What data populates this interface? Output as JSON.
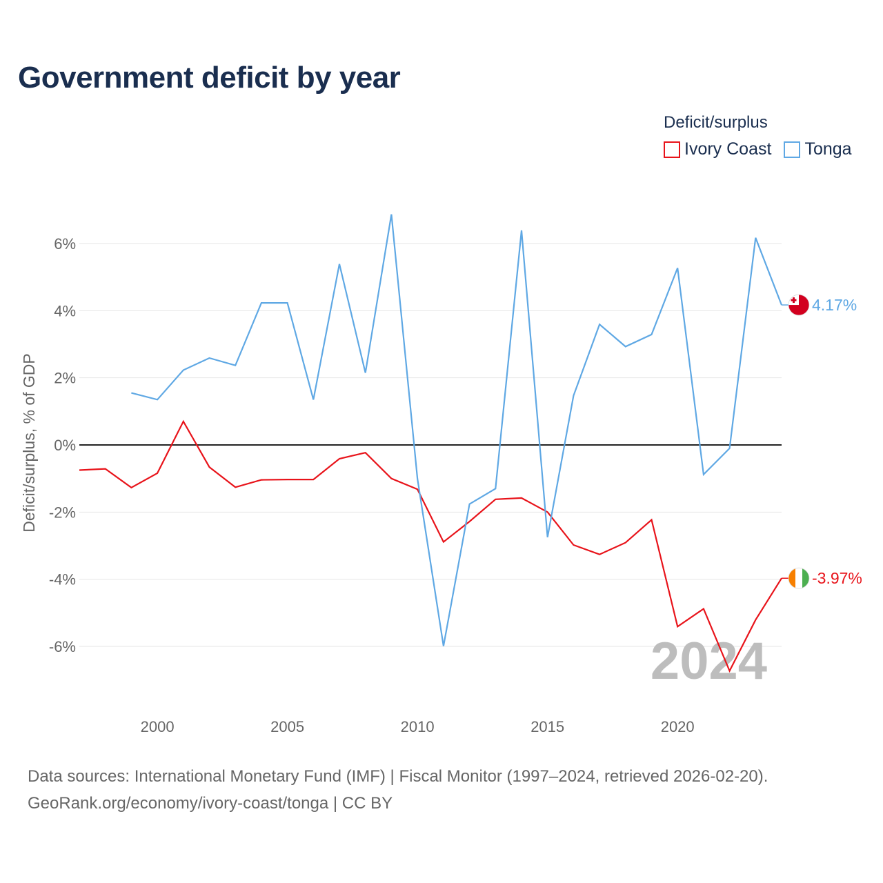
{
  "title": "Government deficit by year",
  "legend": {
    "title": "Deficit/surplus",
    "items": [
      {
        "label": "Ivory Coast",
        "color": "#e8131a"
      },
      {
        "label": "Tonga",
        "color": "#5fa8e4"
      }
    ]
  },
  "chart_data": {
    "type": "line",
    "title": "Government deficit by year",
    "xlabel": "",
    "ylabel": "Deficit/surplus, % of GDP",
    "xlim": [
      1997,
      2024
    ],
    "ylim": [
      -7.5,
      7.5
    ],
    "x_ticks": [
      2000,
      2005,
      2010,
      2015,
      2020
    ],
    "y_ticks": [
      -6,
      -4,
      -2,
      0,
      2,
      4,
      6
    ],
    "y_tick_labels": [
      "-6%",
      "-4%",
      "-2%",
      "0%",
      "2%",
      "4%",
      "6%"
    ],
    "series": [
      {
        "name": "Ivory Coast",
        "color": "#e8131a",
        "x": [
          1997,
          1998,
          1999,
          2000,
          2001,
          2002,
          2003,
          2004,
          2005,
          2006,
          2007,
          2008,
          2009,
          2010,
          2011,
          2012,
          2013,
          2014,
          2015,
          2016,
          2017,
          2018,
          2019,
          2020,
          2021,
          2022,
          2023,
          2024
        ],
        "values": [
          -0.75,
          -0.71,
          -1.27,
          -0.84,
          0.7,
          -0.66,
          -1.26,
          -1.04,
          -1.03,
          -1.03,
          -0.41,
          -0.23,
          -1.0,
          -1.32,
          -2.89,
          -2.28,
          -1.62,
          -1.58,
          -2.0,
          -2.98,
          -3.26,
          -2.91,
          -2.23,
          -5.41,
          -4.88,
          -6.73,
          -5.21,
          -3.97
        ],
        "end_label": "-3.97%"
      },
      {
        "name": "Tonga",
        "color": "#5fa8e4",
        "x": [
          1999,
          2000,
          2001,
          2002,
          2003,
          2004,
          2005,
          2006,
          2007,
          2008,
          2009,
          2010,
          2011,
          2012,
          2013,
          2014,
          2015,
          2016,
          2017,
          2018,
          2019,
          2020,
          2021,
          2022,
          2023,
          2024
        ],
        "values": [
          1.55,
          1.35,
          2.23,
          2.59,
          2.37,
          4.23,
          4.23,
          1.35,
          5.39,
          2.15,
          6.87,
          -1.0,
          -5.99,
          -1.76,
          -1.3,
          6.39,
          -2.75,
          1.47,
          3.59,
          2.93,
          3.29,
          5.27,
          -0.88,
          -0.1,
          6.17,
          4.17
        ],
        "end_label": "4.17%"
      }
    ],
    "annotation": "2024"
  },
  "footer": {
    "line1": "Data sources: International Monetary Fund (IMF) | Fiscal Monitor (1997–2024, retrieved 2026-02-20).",
    "line2": "GeoRank.org/economy/ivory-coast/tonga | CC BY"
  },
  "colors": {
    "title": "#1a2e4f",
    "grid": "#e6e6e6",
    "zero_line": "#222222",
    "tonga_flag_red": "#d2001f",
    "ivory_orange": "#f77f00",
    "ivory_green": "#4caf50"
  },
  "icons": {
    "tonga": "tonga-flag-icon",
    "ivory_coast": "ivory-coast-flag-icon"
  }
}
